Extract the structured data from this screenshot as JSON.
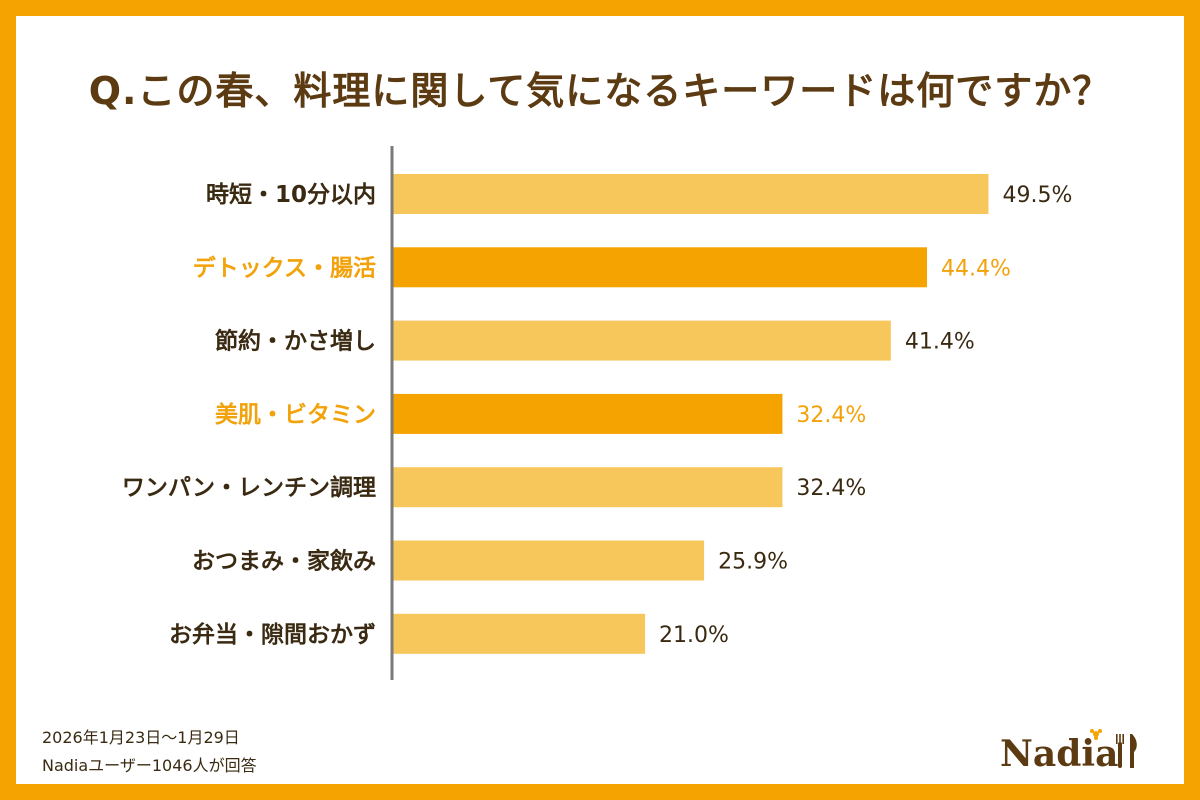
{
  "title": "Q.この春、料理に関して気になるキーワードは何ですか？",
  "colors": {
    "background": "#F5A300",
    "bar_default": "#F7C75C",
    "bar_highlight": "#F5A300",
    "text_default": "#3A2A12",
    "text_highlight": "#F2A20A",
    "axis": "#7A7A7A"
  },
  "chart_data": {
    "type": "bar",
    "orientation": "horizontal",
    "title": "Q.この春、料理に関して気になるキーワードは何ですか？",
    "xlabel": "",
    "ylabel": "",
    "xlim": [
      0,
      60
    ],
    "categories": [
      "時短・10分以内",
      "デトックス・腸活",
      "節約・かさ増し",
      "美肌・ビタミン",
      "ワンパン・レンチン調理",
      "おつまみ・家飲み",
      "お弁当・隙間おかず"
    ],
    "values": [
      49.5,
      44.4,
      41.4,
      32.4,
      32.4,
      25.9,
      21.0
    ],
    "value_labels": [
      "49.5%",
      "44.4%",
      "41.4%",
      "32.4%",
      "32.4%",
      "25.9%",
      "21.0%"
    ],
    "highlighted": [
      false,
      true,
      false,
      true,
      false,
      false,
      false
    ]
  },
  "footer": {
    "date": "2026年1月23日〜1月29日",
    "source": "Nadiaユーザー1046人が回答"
  },
  "logo": {
    "text": "Nadia",
    "icon": "fork-knife-icon"
  }
}
